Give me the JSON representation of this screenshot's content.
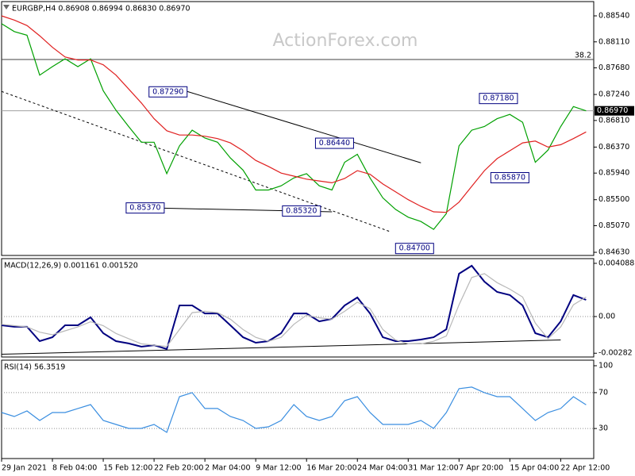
{
  "chart_data": [
    {
      "type": "line",
      "title": "EURGBP,H4 0.86908 0.86994 0.86830 0.86970",
      "watermark": "ActionForex.com",
      "x": [
        0,
        1,
        2,
        3,
        4,
        5,
        6,
        7,
        8,
        9,
        10,
        11,
        12,
        13,
        14,
        15,
        16,
        17,
        18,
        19,
        20,
        21,
        22,
        23,
        24,
        25,
        26,
        27,
        28,
        29,
        30,
        31,
        32,
        33,
        34,
        35,
        36,
        37,
        38,
        39,
        40,
        41,
        42,
        43,
        44,
        45,
        46
      ],
      "xlim": [
        0,
        46.6
      ],
      "series": [
        {
          "color": "#00a000",
          "values": [
            0.8841,
            0.8828,
            0.8822,
            0.8756,
            0.877,
            0.8783,
            0.877,
            0.8783,
            0.873,
            0.8698,
            0.8671,
            0.8645,
            0.8645,
            0.8593,
            0.8639,
            0.8665,
            0.8652,
            0.8645,
            0.8619,
            0.8599,
            0.8566,
            0.8566,
            0.8573,
            0.8586,
            0.8593,
            0.8573,
            0.8566,
            0.8612,
            0.8625,
            0.8586,
            0.8553,
            0.8534,
            0.8521,
            0.8514,
            0.8501,
            0.8527,
            0.8639,
            0.8665,
            0.8671,
            0.8684,
            0.8691,
            0.8678,
            0.8612,
            0.8632,
            0.8671,
            0.8704,
            0.8697
          ]
        },
        {
          "color": "#e02020",
          "values": [
            0.8854,
            0.8847,
            0.8838,
            0.8821,
            0.8802,
            0.8786,
            0.8781,
            0.8781,
            0.8773,
            0.8756,
            0.8733,
            0.871,
            0.8684,
            0.8664,
            0.8657,
            0.8657,
            0.8655,
            0.8651,
            0.8644,
            0.8631,
            0.8615,
            0.8605,
            0.8594,
            0.8589,
            0.8584,
            0.8581,
            0.8578,
            0.8585,
            0.8598,
            0.8592,
            0.8576,
            0.8563,
            0.855,
            0.8539,
            0.853,
            0.8529,
            0.8546,
            0.8572,
            0.8598,
            0.8618,
            0.8631,
            0.8644,
            0.8647,
            0.8637,
            0.8641,
            0.8651,
            0.8662
          ]
        }
      ],
      "ylim": [
        0.84578,
        0.88776
      ],
      "yticks": [
        {
          "value": 0.8854,
          "label": "0.88540"
        },
        {
          "value": 0.8811,
          "label": "0.88110"
        },
        {
          "value": 0.8768,
          "label": "0.87680"
        },
        {
          "value": 0.8724,
          "label": "0.87240"
        },
        {
          "value": 0.8681,
          "label": "0.86810"
        },
        {
          "value": 0.8637,
          "label": "0.86370"
        },
        {
          "value": 0.8594,
          "label": "0.85940"
        },
        {
          "value": 0.855,
          "label": "0.85500"
        },
        {
          "value": 0.8507,
          "label": "0.85070"
        },
        {
          "value": 0.8463,
          "label": "0.84630"
        }
      ],
      "hlines": [
        {
          "value": 0.87818,
          "label": "38.2",
          "label_position": "inside",
          "color": "#404040"
        },
        {
          "value": 0.8697,
          "label": "0.86970",
          "label_position": "axis",
          "color": "#a0a0a0"
        }
      ],
      "trendlines": [
        {
          "x": [
            14.6,
            33
          ],
          "y": [
            0.8729,
            0.8611
          ],
          "style": "solid",
          "color": "#000000"
        },
        {
          "x": [
            0,
            30.6
          ],
          "y": [
            0.8729,
            0.8497
          ],
          "style": "dashed",
          "color": "#000000"
        },
        {
          "x": [
            12.7,
            26
          ],
          "y": [
            0.8536,
            0.853
          ],
          "style": "solid",
          "color": "#000000"
        }
      ],
      "annotations": [
        {
          "text": "0.87290",
          "x": 14.6,
          "y": 0.8729
        },
        {
          "text": "0.85370",
          "x": 12.8,
          "y": 0.8537
        },
        {
          "text": "0.85320",
          "x": 25.1,
          "y": 0.8532
        },
        {
          "text": "0.86440",
          "x": 27.7,
          "y": 0.8644
        },
        {
          "text": "0.84700",
          "x": 34.0,
          "y": 0.847
        },
        {
          "text": "0.87180",
          "x": 40.6,
          "y": 0.8718
        },
        {
          "text": "0.85870",
          "x": 41.5,
          "y": 0.8587
        }
      ]
    },
    {
      "type": "line",
      "title": "MACD(12,26,9) 0.001161 0.001520",
      "x": [
        0,
        1,
        2,
        3,
        4,
        5,
        6,
        7,
        8,
        9,
        10,
        11,
        12,
        13,
        14,
        15,
        16,
        17,
        18,
        19,
        20,
        21,
        22,
        23,
        24,
        25,
        26,
        27,
        28,
        29,
        30,
        31,
        32,
        33,
        34,
        35,
        36,
        37,
        38,
        39,
        40,
        41,
        42,
        43,
        44,
        45,
        46
      ],
      "xlim": [
        0,
        46.6
      ],
      "series": [
        {
          "color": "#000080",
          "values": [
            -0.00067,
            -0.00079,
            -0.00079,
            -0.00189,
            -0.00159,
            -0.00067,
            -0.00067,
            -6e-05,
            -0.00128,
            -0.00189,
            -0.00207,
            -0.00232,
            -0.0022,
            -0.0025,
            0.00085,
            0.00085,
            0.00024,
            0.00024,
            -0.00067,
            -0.00159,
            -0.00201,
            -0.00189,
            -0.00128,
            0.00024,
            0.00024,
            -0.00037,
            -0.00018,
            0.00085,
            0.00146,
            0.00024,
            -0.00159,
            -0.00189,
            -0.00189,
            -0.00177,
            -0.00159,
            -0.00098,
            0.00329,
            0.0039,
            0.00268,
            0.00189,
            0.00165,
            0.00085,
            -0.00128,
            -0.00159,
            -0.00037,
            0.00165,
            0.00128
          ]
        },
        {
          "color": "#b8b8b8",
          "values": [
            -0.0006,
            -0.0007,
            -0.0008,
            -0.0012,
            -0.0014,
            -0.0011,
            -0.0008,
            -0.0004,
            -0.0007,
            -0.0013,
            -0.0017,
            -0.0021,
            -0.0022,
            -0.0023,
            -0.001,
            0.0003,
            0.0004,
            0.0003,
            -0.0002,
            -0.001,
            -0.0016,
            -0.0019,
            -0.0016,
            -0.0006,
            0.0001,
            -0.0001,
            -0.0002,
            0.0004,
            0.0011,
            0.0006,
            -0.001,
            -0.0018,
            -0.0021,
            -0.0021,
            -0.0019,
            -0.0015,
            0.0009,
            0.003,
            0.0033,
            0.0026,
            0.0021,
            0.0015,
            -0.0005,
            -0.0017,
            -0.0008,
            0.0009,
            0.0015
          ]
        }
      ],
      "ylim": [
        -0.00311,
        0.00445
      ],
      "yticks": [
        0.004088,
        {
          "value": 0,
          "label": "0.00"
        },
        -0.00282
      ],
      "levels": [
        0
      ],
      "trendlines": [
        {
          "x": [
            0,
            44
          ],
          "y": [
            -0.0029,
            -0.0018
          ],
          "style": "solid",
          "color": "#000000"
        }
      ]
    },
    {
      "type": "line",
      "title": "RSI(14) 56.3519",
      "x": [
        0,
        1,
        2,
        3,
        4,
        5,
        6,
        7,
        8,
        9,
        10,
        11,
        12,
        13,
        14,
        15,
        16,
        17,
        18,
        19,
        20,
        21,
        22,
        23,
        24,
        25,
        26,
        27,
        28,
        29,
        30,
        31,
        32,
        33,
        34,
        35,
        36,
        37,
        38,
        39,
        40,
        41,
        42,
        43,
        44,
        45,
        46
      ],
      "xlim": [
        0,
        46.6
      ],
      "series": [
        {
          "color": "#3a8ee0",
          "values": [
            47.8,
            43.4,
            49.6,
            39.0,
            47.8,
            47.8,
            52.3,
            56.7,
            39.0,
            34.5,
            30.1,
            30.1,
            34.5,
            25.7,
            65.5,
            70.0,
            52.3,
            52.3,
            43.4,
            39.0,
            30.1,
            31.9,
            39.0,
            56.7,
            43.4,
            39.0,
            43.4,
            61.1,
            65.5,
            47.8,
            34.5,
            34.5,
            34.5,
            39.0,
            30.1,
            47.8,
            74.4,
            76.2,
            70.0,
            65.5,
            65.5,
            52.3,
            39.0,
            47.8,
            52.3,
            65.5,
            56.4
          ]
        }
      ],
      "ylim": [
        -3.5,
        106.2
      ],
      "yticks": [
        100,
        70,
        30
      ],
      "levels": [
        70,
        30
      ],
      "xticks": [
        {
          "value": 0,
          "label": "29 Jan 2021"
        },
        {
          "value": 4,
          "label": "8 Feb 04:00"
        },
        {
          "value": 8,
          "label": "15 Feb 12:00"
        },
        {
          "value": 12,
          "label": "22 Feb 20:00"
        },
        {
          "value": 16,
          "label": "2 Mar 04:00"
        },
        {
          "value": 20,
          "label": "9 Mar 12:00"
        },
        {
          "value": 24,
          "label": "16 Mar 20:00"
        },
        {
          "value": 28,
          "label": "24 Mar 04:00"
        },
        {
          "value": 32,
          "label": "31 Mar 12:00"
        },
        {
          "value": 36,
          "label": "7 Apr 20:00"
        },
        {
          "value": 40,
          "label": "15 Apr 04:00"
        },
        {
          "value": 44,
          "label": "22 Apr 12:00"
        }
      ]
    }
  ]
}
